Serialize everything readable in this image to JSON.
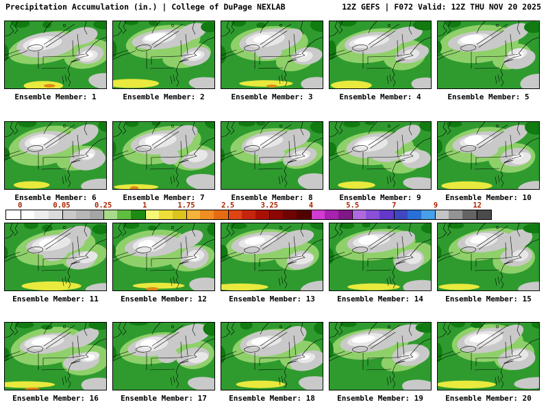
{
  "header": {
    "left_title": "Precipitation Accumulation (in.) | College of DuPage NEXLAB",
    "right_title": "12Z GEFS | F072 Valid: 12Z THU NOV 20 2025"
  },
  "colorbar": {
    "tick_labels": [
      "0",
      "0.05",
      "0.25",
      "1",
      "1.75",
      "2.5",
      "3.25",
      "4",
      "5.5",
      "7",
      "9",
      "12"
    ],
    "tick_label_color": "#aa2200",
    "underflow_color": "#ffffff",
    "overflow_color": "#4a4a4a",
    "segment_colors": [
      "#ffffff",
      "#ededed",
      "#dbdbdb",
      "#c9c9c9",
      "#b7b7b7",
      "#a5a5a5",
      "#a9dc8a",
      "#5fbe3f",
      "#1e8c14",
      "#f8f878",
      "#eede3a",
      "#dcc41e",
      "#f6b33a",
      "#ef8e22",
      "#e66c14",
      "#de4414",
      "#c6240e",
      "#aa0f06",
      "#8c0604",
      "#6e0302",
      "#520100",
      "#d23cd2",
      "#a822b0",
      "#801888",
      "#b06ae0",
      "#8a50d8",
      "#6438c8",
      "#4048c0",
      "#2870d8",
      "#48a0e8",
      "#c4c4c4",
      "#949494",
      "#646464"
    ]
  },
  "map_palette": {
    "green": "#2f9b2f",
    "light_green": "#8fd06a",
    "dark_green": "#117a11",
    "gray": "#c9c9c9",
    "light_gray": "#e7e7e7",
    "white": "#ffffff",
    "yellow": "#e9e93e",
    "orange": "#e08818",
    "border": "#000000"
  },
  "members": [
    {
      "label": "Ensemble Member: 1"
    },
    {
      "label": "Ensemble Member: 2"
    },
    {
      "label": "Ensemble Member: 3"
    },
    {
      "label": "Ensemble Member: 4"
    },
    {
      "label": "Ensemble Member: 5"
    },
    {
      "label": "Ensemble Member: 6"
    },
    {
      "label": "Ensemble Member: 7"
    },
    {
      "label": "Ensemble Member: 8"
    },
    {
      "label": "Ensemble Member: 9"
    },
    {
      "label": "Ensemble Member: 10"
    },
    {
      "label": "Ensemble Member: 11"
    },
    {
      "label": "Ensemble Member: 12"
    },
    {
      "label": "Ensemble Member: 13"
    },
    {
      "label": "Ensemble Member: 14"
    },
    {
      "label": "Ensemble Member: 15"
    },
    {
      "label": "Ensemble Member: 16"
    },
    {
      "label": "Ensemble Member: 17"
    },
    {
      "label": "Ensemble Member: 18"
    },
    {
      "label": "Ensemble Member: 19"
    },
    {
      "label": "Ensemble Member: 20"
    }
  ]
}
